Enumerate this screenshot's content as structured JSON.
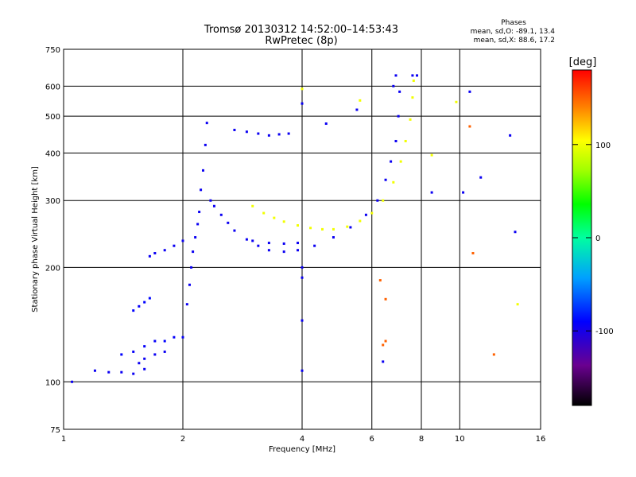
{
  "chart_data": {
    "type": "scatter",
    "title": "Tromsø 20130312 14:52:00–14:53:43",
    "subtitle": "RwPretec (8p)",
    "xlabel": "Frequency [MHz]",
    "ylabel": "Stationary phase Virtual Height [km]",
    "x_scale": "log2",
    "y_scale": "log",
    "xlim": [
      1,
      16
    ],
    "ylim": [
      75,
      750
    ],
    "x_ticks": [
      {
        "value": 1,
        "label": "1"
      },
      {
        "value": 2,
        "label": "2"
      },
      {
        "value": 4,
        "label": "4"
      },
      {
        "value": 6,
        "label": "6"
      },
      {
        "value": 8,
        "label": "8"
      },
      {
        "value": 10,
        "label": "10"
      },
      {
        "value": 16,
        "label": "16"
      }
    ],
    "y_ticks": [
      {
        "value": 75,
        "label": "75"
      },
      {
        "value": 100,
        "label": "100"
      },
      {
        "value": 200,
        "label": "200"
      },
      {
        "value": 300,
        "label": "300"
      },
      {
        "value": 400,
        "label": "400"
      },
      {
        "value": 500,
        "label": "500"
      },
      {
        "value": 600,
        "label": "600"
      },
      {
        "value": 750,
        "label": "750"
      }
    ],
    "grid": true,
    "phases": {
      "title": "Phases",
      "line_o": "mean, sd,O: -89.1, 13.4",
      "line_x": "mean, sd,X: 88.6, 17.2"
    },
    "colorbar": {
      "label": "[deg]",
      "range": [
        -180,
        180
      ],
      "ticks": [
        {
          "value": 100,
          "label": "100"
        },
        {
          "value": 0,
          "label": "0"
        },
        {
          "value": -100,
          "label": "-100"
        }
      ]
    },
    "series": [
      {
        "points": [
          [
            1.05,
            100,
            -95
          ],
          [
            1.2,
            107,
            -95
          ],
          [
            1.3,
            106,
            -95
          ],
          [
            1.4,
            106,
            -95
          ],
          [
            1.5,
            105,
            -95
          ],
          [
            1.55,
            112,
            -95
          ],
          [
            1.6,
            108,
            -95
          ],
          [
            1.4,
            118,
            -90
          ],
          [
            1.5,
            120,
            -92
          ],
          [
            1.6,
            124,
            -92
          ],
          [
            1.7,
            128,
            -92
          ],
          [
            1.8,
            128,
            -90
          ],
          [
            1.9,
            131,
            -92
          ],
          [
            2.0,
            131,
            -92
          ],
          [
            1.6,
            115,
            -95
          ],
          [
            1.7,
            118,
            -95
          ],
          [
            1.8,
            120,
            -95
          ],
          [
            1.5,
            154,
            -90
          ],
          [
            1.55,
            158,
            -92
          ],
          [
            1.6,
            162,
            -90
          ],
          [
            1.65,
            166,
            -88
          ],
          [
            1.65,
            214,
            -95
          ],
          [
            1.7,
            218,
            -95
          ],
          [
            1.8,
            222,
            -95
          ],
          [
            1.9,
            228,
            -95
          ],
          [
            2.0,
            235,
            -95
          ],
          [
            2.05,
            160,
            -95
          ],
          [
            2.08,
            180,
            -95
          ],
          [
            2.1,
            200,
            -95
          ],
          [
            2.12,
            220,
            -95
          ],
          [
            2.15,
            240,
            -95
          ],
          [
            2.18,
            260,
            -95
          ],
          [
            2.2,
            280,
            -95
          ],
          [
            2.22,
            320,
            -95
          ],
          [
            2.25,
            360,
            -95
          ],
          [
            2.28,
            420,
            -95
          ],
          [
            2.3,
            480,
            -95
          ],
          [
            2.35,
            300,
            -95
          ],
          [
            2.4,
            290,
            -95
          ],
          [
            2.5,
            275,
            -95
          ],
          [
            2.6,
            262,
            -95
          ],
          [
            2.7,
            250,
            -95
          ],
          [
            2.9,
            237,
            -95
          ],
          [
            3.1,
            228,
            -95
          ],
          [
            3.3,
            222,
            -95
          ],
          [
            3.6,
            220,
            -95
          ],
          [
            3.9,
            222,
            -95
          ],
          [
            4.3,
            228,
            -95
          ],
          [
            4.8,
            240,
            -95
          ],
          [
            5.3,
            255,
            -95
          ],
          [
            5.8,
            275,
            -95
          ],
          [
            6.2,
            300,
            -95
          ],
          [
            6.5,
            340,
            -95
          ],
          [
            6.7,
            380,
            -95
          ],
          [
            6.9,
            430,
            -95
          ],
          [
            7.0,
            500,
            -95
          ],
          [
            7.05,
            580,
            -95
          ],
          [
            2.7,
            460,
            -95
          ],
          [
            2.9,
            455,
            -95
          ],
          [
            3.1,
            450,
            -95
          ],
          [
            3.3,
            445,
            -95
          ],
          [
            3.5,
            448,
            -95
          ],
          [
            3.7,
            450,
            -95
          ],
          [
            3.0,
            235,
            -95
          ],
          [
            3.3,
            232,
            -95
          ],
          [
            3.6,
            231,
            -95
          ],
          [
            3.9,
            232,
            -95
          ],
          [
            3.0,
            290,
            100
          ],
          [
            3.2,
            278,
            100
          ],
          [
            3.4,
            270,
            100
          ],
          [
            3.6,
            264,
            100
          ],
          [
            3.9,
            258,
            100
          ],
          [
            4.2,
            254,
            100
          ],
          [
            4.5,
            252,
            100
          ],
          [
            4.8,
            252,
            100
          ],
          [
            5.2,
            256,
            100
          ],
          [
            5.6,
            265,
            100
          ],
          [
            6.0,
            278,
            100
          ],
          [
            6.4,
            300,
            100
          ],
          [
            6.8,
            335,
            100
          ],
          [
            7.1,
            380,
            100
          ],
          [
            7.3,
            430,
            100
          ],
          [
            7.5,
            490,
            100
          ],
          [
            7.6,
            560,
            100
          ],
          [
            7.65,
            620,
            100
          ],
          [
            6.8,
            600,
            -95
          ],
          [
            6.9,
            640,
            -95
          ],
          [
            7.6,
            640,
            -95
          ],
          [
            7.8,
            640,
            -95
          ],
          [
            9.8,
            545,
            100
          ],
          [
            10.6,
            470,
            150
          ],
          [
            10.6,
            580,
            -95
          ],
          [
            11.3,
            345,
            -95
          ],
          [
            10.2,
            315,
            -95
          ],
          [
            6.3,
            185,
            150
          ],
          [
            6.5,
            165,
            150
          ],
          [
            6.4,
            125,
            150
          ],
          [
            6.4,
            113,
            -95
          ],
          [
            6.5,
            128,
            150
          ],
          [
            10.8,
            218,
            150
          ],
          [
            12.2,
            118,
            150
          ],
          [
            13.4,
            445,
            -95
          ],
          [
            13.8,
            248,
            -95
          ],
          [
            14.0,
            160,
            100
          ],
          [
            4.0,
            590,
            100
          ],
          [
            4.0,
            540,
            -95
          ],
          [
            4.0,
            188,
            -95
          ],
          [
            4.0,
            145,
            -95
          ],
          [
            4.0,
            107,
            -95
          ],
          [
            4.0,
            200,
            -95
          ],
          [
            5.5,
            520,
            -95
          ],
          [
            5.6,
            550,
            100
          ],
          [
            4.6,
            478,
            -95
          ],
          [
            8.5,
            395,
            100
          ],
          [
            8.5,
            315,
            -95
          ]
        ]
      }
    ]
  }
}
